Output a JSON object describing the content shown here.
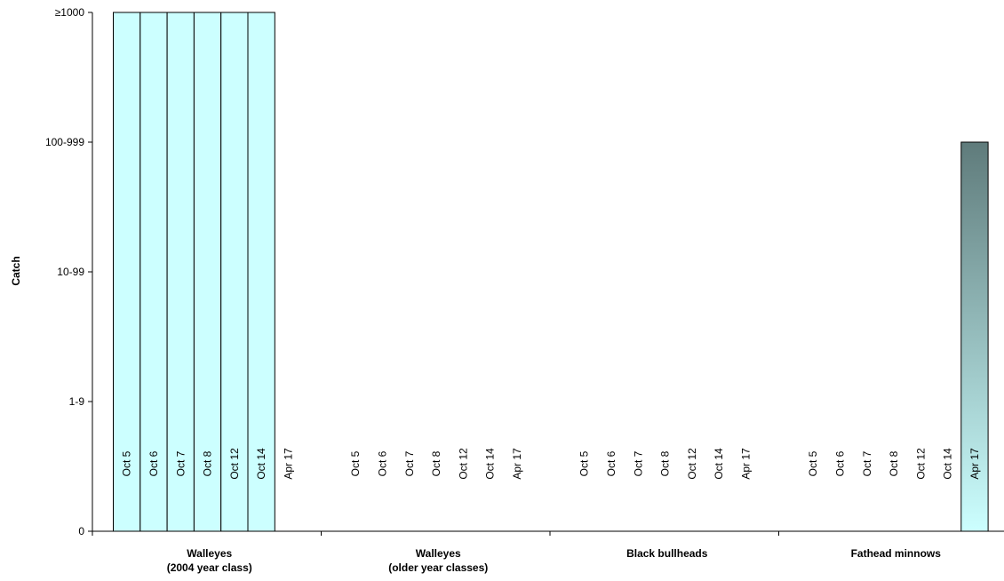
{
  "chart_data": {
    "type": "bar",
    "ylabel": "Catch",
    "xlabel": "",
    "y_categories": [
      "0",
      "1-9",
      "10-99",
      "100-999",
      "≥1000"
    ],
    "ylim": [
      0,
      4
    ],
    "dates": [
      "Oct 5",
      "Oct 6",
      "Oct 7",
      "Oct 8",
      "Oct 12",
      "Oct 14",
      "Apr 17"
    ],
    "groups": [
      {
        "label_lines": [
          "Walleyes",
          "(2004 year class)"
        ],
        "values": [
          4,
          4,
          4,
          4,
          4,
          4,
          0
        ]
      },
      {
        "label_lines": [
          "Walleyes",
          "(older year classes)"
        ],
        "values": [
          0,
          0,
          0,
          0,
          0,
          0,
          0
        ]
      },
      {
        "label_lines": [
          "Black bullheads"
        ],
        "values": [
          0,
          0,
          0,
          0,
          0,
          0,
          0
        ]
      },
      {
        "label_lines": [
          "Fathead minnows"
        ],
        "values": [
          0,
          0,
          0,
          0,
          0,
          0,
          3
        ]
      }
    ],
    "bar_color": "#ccffff",
    "bar_gradient_top": "#5f7b7b",
    "grid": false
  }
}
